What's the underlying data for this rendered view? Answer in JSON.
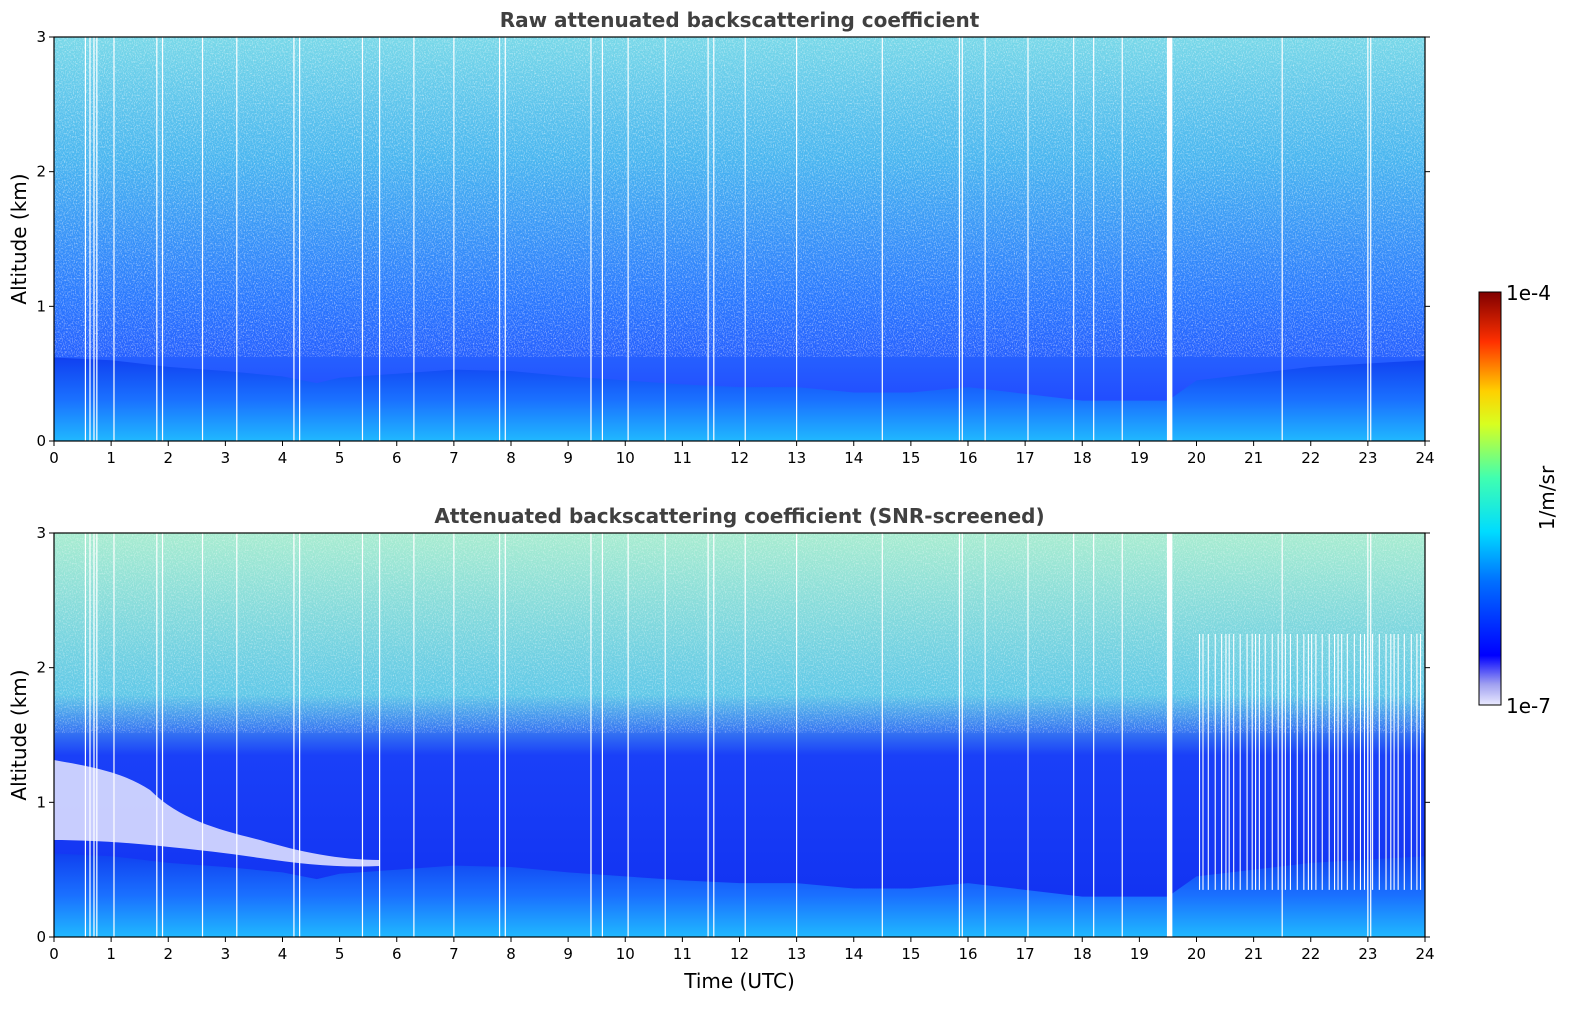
{
  "chart_data": [
    {
      "type": "heatmap",
      "title": "Raw attenuated backscattering coefficient",
      "xlabel": "",
      "ylabel": "Altitude (km)",
      "xlim": [
        0,
        24
      ],
      "ylim": [
        0,
        3
      ],
      "xticks": [
        "0",
        "1",
        "2",
        "3",
        "4",
        "5",
        "6",
        "7",
        "8",
        "9",
        "10",
        "11",
        "12",
        "13",
        "14",
        "15",
        "16",
        "17",
        "18",
        "19",
        "20",
        "21",
        "22",
        "23",
        "24"
      ],
      "yticks": [
        "0",
        "1",
        "2",
        "3"
      ],
      "boundary_layer_top_km": [
        [
          0,
          0.62
        ],
        [
          1,
          0.6
        ],
        [
          2,
          0.55
        ],
        [
          3,
          0.52
        ],
        [
          4,
          0.48
        ],
        [
          4.6,
          0.43
        ],
        [
          5,
          0.47
        ],
        [
          6,
          0.5
        ],
        [
          7,
          0.53
        ],
        [
          8,
          0.52
        ],
        [
          9,
          0.48
        ],
        [
          10,
          0.45
        ],
        [
          11,
          0.42
        ],
        [
          12,
          0.4
        ],
        [
          13,
          0.4
        ],
        [
          14,
          0.36
        ],
        [
          15,
          0.36
        ],
        [
          16,
          0.4
        ],
        [
          17,
          0.35
        ],
        [
          18,
          0.3
        ],
        [
          19,
          0.3
        ],
        [
          19.5,
          0.3
        ],
        [
          20,
          0.45
        ],
        [
          22,
          0.55
        ],
        [
          24,
          0.6
        ]
      ],
      "data_gaps_utc": [
        0.55,
        0.63,
        0.7,
        0.75,
        1.05,
        1.8,
        1.9,
        2.6,
        3.2,
        4.2,
        4.3,
        5.4,
        5.7,
        6.3,
        7.0,
        7.8,
        7.9,
        9.4,
        9.6,
        10.05,
        10.7,
        11.45,
        11.55,
        12.1,
        13.0,
        14.5,
        15.85,
        15.9,
        16.3,
        17.05,
        17.85,
        18.2,
        18.7,
        19.5,
        19.53,
        19.56,
        21.5,
        23.0,
        23.05
      ],
      "screened": false
    },
    {
      "type": "heatmap",
      "title": "Attenuated backscattering coefficient (SNR-screened)",
      "xlabel": "Time (UTC)",
      "ylabel": "Altitude (km)",
      "xlim": [
        0,
        24
      ],
      "ylim": [
        0,
        3
      ],
      "xticks": [
        "0",
        "1",
        "2",
        "3",
        "4",
        "5",
        "6",
        "7",
        "8",
        "9",
        "10",
        "11",
        "12",
        "13",
        "14",
        "15",
        "16",
        "17",
        "18",
        "19",
        "20",
        "21",
        "22",
        "23",
        "24"
      ],
      "yticks": [
        "0",
        "1",
        "2",
        "3"
      ],
      "boundary_layer_top_km": [
        [
          0,
          0.62
        ],
        [
          1,
          0.6
        ],
        [
          2,
          0.55
        ],
        [
          3,
          0.52
        ],
        [
          4,
          0.48
        ],
        [
          4.6,
          0.43
        ],
        [
          5,
          0.47
        ],
        [
          6,
          0.5
        ],
        [
          7,
          0.53
        ],
        [
          8,
          0.52
        ],
        [
          9,
          0.48
        ],
        [
          10,
          0.45
        ],
        [
          11,
          0.42
        ],
        [
          12,
          0.4
        ],
        [
          13,
          0.4
        ],
        [
          14,
          0.36
        ],
        [
          15,
          0.36
        ],
        [
          16,
          0.4
        ],
        [
          17,
          0.35
        ],
        [
          18,
          0.3
        ],
        [
          19,
          0.3
        ],
        [
          19.5,
          0.3
        ],
        [
          20,
          0.45
        ],
        [
          22,
          0.55
        ],
        [
          24,
          0.6
        ]
      ],
      "data_gaps_utc": [
        0.55,
        0.63,
        0.7,
        0.75,
        1.05,
        1.8,
        1.9,
        2.6,
        3.2,
        4.2,
        4.3,
        5.4,
        5.7,
        6.3,
        7.0,
        7.8,
        7.9,
        9.4,
        9.6,
        10.05,
        10.7,
        11.45,
        11.55,
        12.1,
        13.0,
        14.5,
        15.85,
        15.9,
        16.3,
        17.05,
        17.85,
        18.2,
        18.7,
        19.5,
        19.53,
        19.56,
        21.5,
        23.0,
        23.05
      ],
      "screened": true
    }
  ],
  "colorbar": {
    "label": "1/m/sr",
    "min_label": "1e-7",
    "max_label": "1e-4",
    "min": 1e-07,
    "max": 0.0001,
    "scale": "log",
    "colormap": "jet"
  }
}
